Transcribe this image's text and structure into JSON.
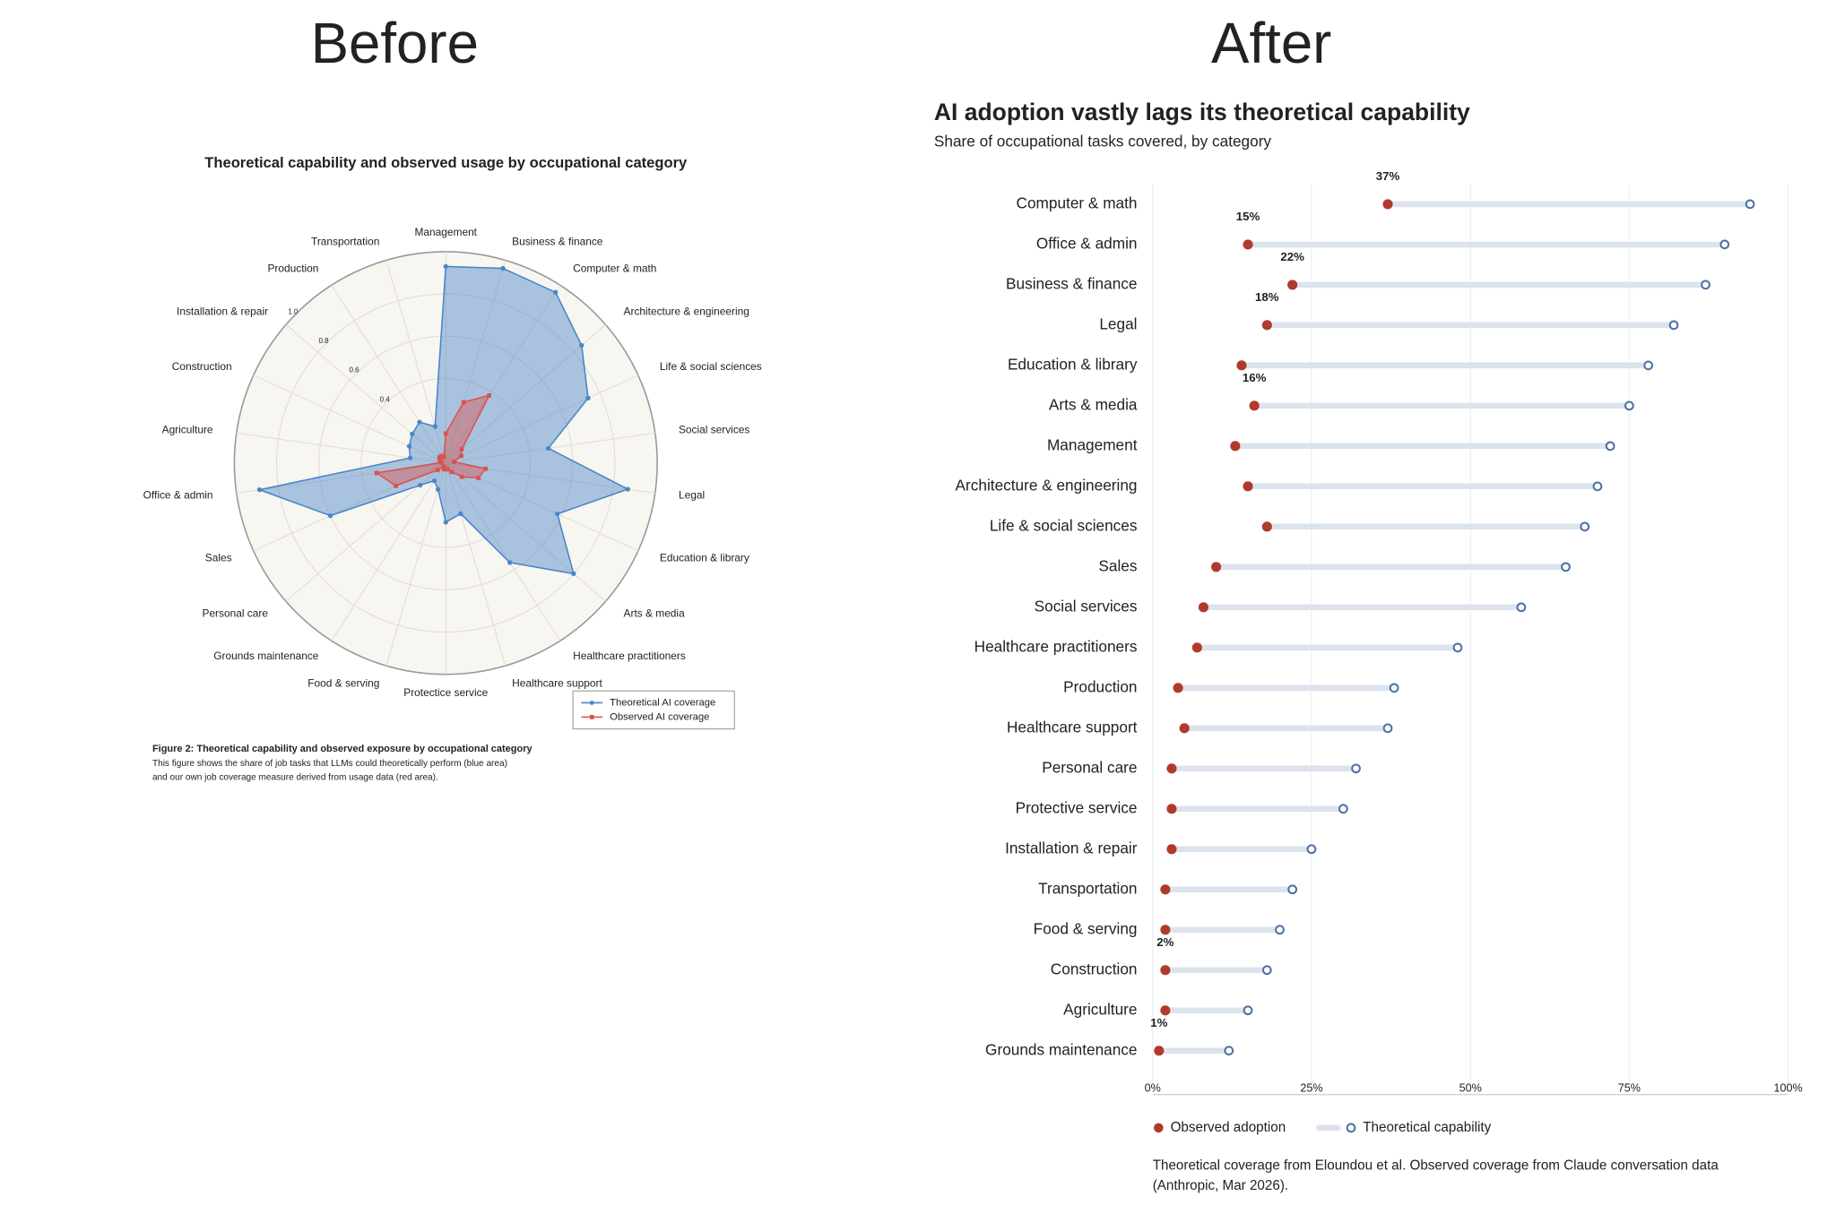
{
  "headings": [
    "Before",
    "After"
  ],
  "chart_data": [
    {
      "type": "radar",
      "title": "Theoretical capability and observed usage by occupational category",
      "categories": [
        "Management",
        "Business & finance",
        "Computer & math",
        "Architecture & engineering",
        "Life & social sciences",
        "Social services",
        "Legal",
        "Education & library",
        "Arts & media",
        "Healthcare practitioners",
        "Healthcare support",
        "Protectice service",
        "Food & serving",
        "Grounds maintenance",
        "Personal care",
        "Sales",
        "Office & admin",
        "Agriculture",
        "Construction",
        "Installation & repair",
        "Production",
        "Transportation"
      ],
      "series": [
        {
          "name": "Theoretical AI coverage",
          "color": "#4a86c8",
          "values": [
            0.93,
            0.96,
            0.96,
            0.85,
            0.74,
            0.49,
            0.87,
            0.58,
            0.8,
            0.56,
            0.25,
            0.28,
            0.13,
            0.1,
            0.16,
            0.6,
            0.89,
            0.17,
            0.19,
            0.21,
            0.23,
            0.18
          ]
        },
        {
          "name": "Observed AI coverage",
          "color": "#d9534f",
          "values": [
            0.14,
            0.3,
            0.38,
            0.1,
            0.08,
            0.04,
            0.19,
            0.17,
            0.1,
            0.05,
            0.03,
            0.03,
            0.03,
            0.02,
            0.05,
            0.26,
            0.33,
            0.02,
            0.03,
            0.04,
            0.04,
            0.03
          ]
        }
      ],
      "ylim": [
        0,
        1
      ],
      "yticks": [
        0.4,
        0.6,
        0.8,
        {
          "value": 1,
          "label": "1.0"
        }
      ],
      "grid": true,
      "legend": "bottom-right",
      "figure_caption": "Figure 2: Theoretical capability and observed exposure by occupational category",
      "figure_note": "This figure shows the share of job tasks that LLMs could theoretically perform (blue area) and our own job coverage measure derived from usage data (red area)."
    },
    {
      "type": "dumbbell",
      "title": "AI adoption vastly lags its theoretical capability",
      "subtitle": "Share of occupational tasks covered, by category",
      "categories": [
        "Computer & math",
        "Office & admin",
        "Business & finance",
        "Legal",
        "Education & library",
        "Arts & media",
        "Management",
        "Architecture & engineering",
        "Life & social sciences",
        "Sales",
        "Social services",
        "Healthcare practitioners",
        "Production",
        "Healthcare support",
        "Personal care",
        "Protective service",
        "Installation & repair",
        "Transportation",
        "Food & serving",
        "Construction",
        "Agriculture",
        "Grounds maintenance"
      ],
      "series": [
        {
          "name": "Observed adoption",
          "color": "#b03a2e",
          "values": [
            37,
            15,
            22,
            18,
            14,
            16,
            13,
            15,
            18,
            10,
            8,
            7,
            4,
            5,
            3,
            3,
            3,
            2,
            2,
            2,
            2,
            1
          ],
          "value_labels": [
            "37%",
            "15%",
            "22%",
            "18%",
            null,
            "16%",
            null,
            null,
            null,
            null,
            null,
            null,
            null,
            null,
            null,
            null,
            null,
            null,
            null,
            "2%",
            null,
            "1%"
          ]
        },
        {
          "name": "Theoretical capability",
          "color": "#4a6fa5",
          "values": [
            94,
            90,
            87,
            82,
            78,
            75,
            72,
            70,
            68,
            65,
            58,
            48,
            38,
            37,
            32,
            30,
            25,
            22,
            20,
            18,
            15,
            12
          ]
        }
      ],
      "xlim": [
        0,
        100
      ],
      "xticks": [
        {
          "value": 0,
          "label": "0%"
        },
        {
          "value": 25,
          "label": "25%"
        },
        {
          "value": 50,
          "label": "50%"
        },
        {
          "value": 75,
          "label": "75%"
        },
        {
          "value": 100,
          "label": "100%"
        }
      ],
      "grid": true,
      "legend": "bottom-left",
      "source": "Theoretical coverage from Eloundou et al. Observed coverage from Claude conversation data (Anthropic, Mar 2026)."
    }
  ]
}
